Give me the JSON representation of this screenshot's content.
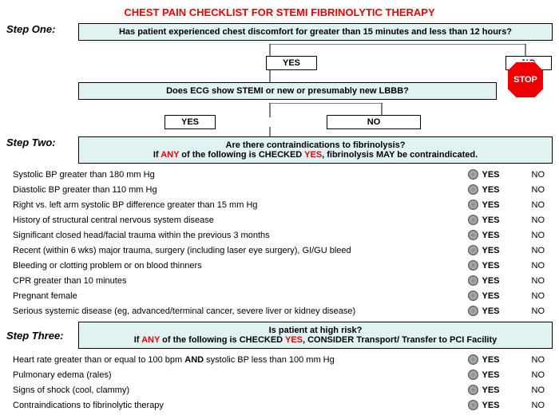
{
  "title": "CHEST PAIN CHECKLIST FOR STEMI FIBRINOLYTIC THERAPY",
  "steps": {
    "one": {
      "label": "Step One:",
      "q1": "Has patient experienced chest discomfort for greater than 15 minutes and less than 12 hours?",
      "q2": "Does ECG show STEMI or new or presumably new LBBB?"
    },
    "two": {
      "label": "Step Two:",
      "q_top": "Are there contraindications to fibrinolysis?",
      "q_pre": "If ",
      "q_any": "ANY",
      "q_mid": " of the following is CHECKED ",
      "q_yes": "YES",
      "q_post": ", fibrinolysis ",
      "q_may": "MAY",
      "q_end": " be contraindicated."
    },
    "three": {
      "label": "Step Three:",
      "q_top": "Is patient at high risk?",
      "q_pre": "If ",
      "q_any": "ANY",
      "q_mid": " of the following is CHECKED ",
      "q_yes": "YES",
      "q_post": ", CONSIDER Transport/ Transfer to PCI Facility"
    }
  },
  "yn": {
    "yes": "YES",
    "no": "NO",
    "stop": "STOP"
  },
  "contraindications": [
    "Systolic BP greater than 180 mm Hg",
    "Diastolic BP greater than 110 mm Hg",
    "Right vs. left arm systolic BP difference greater than 15 mm Hg",
    "History of structural central nervous system disease",
    "Significant closed head/facial trauma within the previous 3 months",
    "Recent (within 6 wks) major trauma, surgery (including laser eye surgery), GI/GU bleed",
    "Bleeding or clotting problem or on blood thinners",
    "CPR greater than 10 minutes",
    "Pregnant female",
    "Serious systemic disease (eg, advanced/terminal cancer, severe liver or kidney disease)"
  ],
  "highrisk_first_a": "Heart rate greater than or equal to 100 bpm ",
  "highrisk_first_b": "AND",
  "highrisk_first_c": " systolic BP less than 100 mm Hg",
  "highrisk": [
    "Pulmonary edema (rales)",
    "Signs of shock (cool, clammy)",
    "Contraindications to fibrinolytic therapy"
  ],
  "colors": {
    "accent_bg": "#e0f2f2",
    "red": "#e00000"
  }
}
